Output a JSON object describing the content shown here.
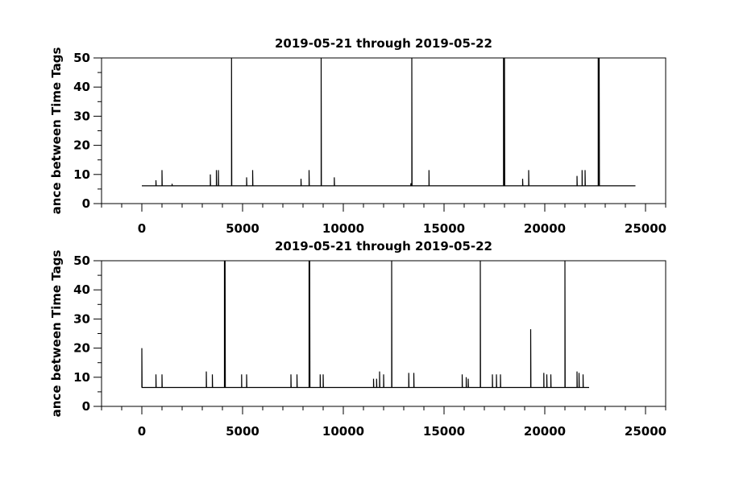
{
  "figure": {
    "background": "#ffffff",
    "line_color": "#000000"
  },
  "chart_data": [
    {
      "type": "line",
      "title": "2019-05-21 through 2019-05-22",
      "ylabel": "ance between Time Tags",
      "xlabel": "",
      "xlim": [
        -2000,
        26000
      ],
      "ylim": [
        0,
        50
      ],
      "xticks": [
        0,
        5000,
        10000,
        15000,
        20000,
        25000
      ],
      "xtick_labels": [
        "0",
        "5000",
        "10000",
        "15000",
        "20000",
        "25000"
      ],
      "yticks": [
        0,
        10,
        20,
        30,
        40,
        50
      ],
      "ytick_labels": [
        "0",
        "10",
        "20",
        "30",
        "40",
        "50"
      ],
      "grid": false,
      "series": [
        {
          "baseline": 6.1,
          "x_end": 24500,
          "spikes": [
            [
              700,
              8
            ],
            [
              1000,
              11.5
            ],
            [
              1500,
              6.8
            ],
            [
              3400,
              10
            ],
            [
              3700,
              11.5
            ],
            [
              3800,
              11.5
            ],
            [
              4450,
              50
            ],
            [
              5200,
              9
            ],
            [
              5500,
              11.5
            ],
            [
              7900,
              8.5
            ],
            [
              8300,
              11.5
            ],
            [
              8900,
              50
            ],
            [
              9550,
              9
            ],
            [
              13350,
              7
            ],
            [
              13400,
              50
            ],
            [
              14250,
              11.5
            ],
            [
              17950,
              50
            ],
            [
              18000,
              50
            ],
            [
              18900,
              8.5
            ],
            [
              19200,
              11.5
            ],
            [
              21600,
              9.5
            ],
            [
              21850,
              11.5
            ],
            [
              22000,
              11.5
            ],
            [
              22650,
              50
            ],
            [
              22700,
              50
            ]
          ]
        }
      ]
    },
    {
      "type": "line",
      "title": "2019-05-21 through 2019-05-22",
      "ylabel": "ance between Time Tags",
      "xlabel": "",
      "xlim": [
        -2000,
        26000
      ],
      "ylim": [
        0,
        50
      ],
      "xticks": [
        0,
        5000,
        10000,
        15000,
        20000,
        25000
      ],
      "xtick_labels": [
        "0",
        "5000",
        "10000",
        "15000",
        "20000",
        "25000"
      ],
      "yticks": [
        0,
        10,
        20,
        30,
        40,
        50
      ],
      "ytick_labels": [
        "0",
        "10",
        "20",
        "30",
        "40",
        "50"
      ],
      "grid": false,
      "series": [
        {
          "baseline": 6.5,
          "x_end": 22200,
          "spikes": [
            [
              0,
              20
            ],
            [
              700,
              11
            ],
            [
              1000,
              11
            ],
            [
              3200,
              12
            ],
            [
              3500,
              11
            ],
            [
              4100,
              50
            ],
            [
              4130,
              50
            ],
            [
              4950,
              11
            ],
            [
              5200,
              11
            ],
            [
              7400,
              11
            ],
            [
              7700,
              11
            ],
            [
              8300,
              50
            ],
            [
              8330,
              50
            ],
            [
              8850,
              11
            ],
            [
              9000,
              11
            ],
            [
              11500,
              9.5
            ],
            [
              11650,
              9.5
            ],
            [
              11800,
              12
            ],
            [
              12000,
              11
            ],
            [
              12400,
              50
            ],
            [
              13250,
              11.5
            ],
            [
              13500,
              11.5
            ],
            [
              15900,
              11
            ],
            [
              16100,
              10
            ],
            [
              16200,
              9.5
            ],
            [
              16800,
              50
            ],
            [
              17400,
              11
            ],
            [
              17600,
              11
            ],
            [
              17800,
              11
            ],
            [
              19300,
              26.5
            ],
            [
              19950,
              11.5
            ],
            [
              20100,
              11
            ],
            [
              20300,
              11
            ],
            [
              21000,
              50
            ],
            [
              21600,
              12
            ],
            [
              21700,
              11.5
            ],
            [
              21900,
              11
            ]
          ]
        }
      ]
    }
  ]
}
